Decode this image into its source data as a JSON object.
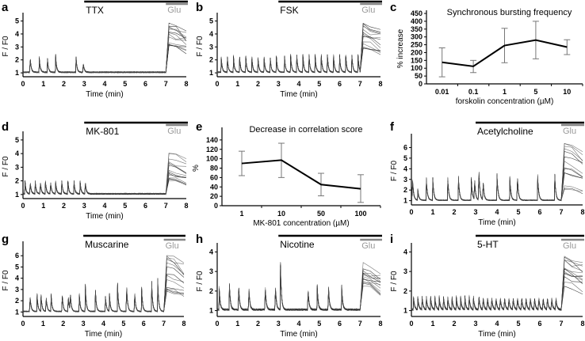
{
  "chart_data": [
    {
      "panel": "a",
      "type": "line",
      "drug": "TTX",
      "glu": "Glu",
      "xlabel": "Time (min)",
      "ylabel": "F / F0",
      "xticks": [
        0,
        1,
        2,
        3,
        4,
        5,
        6,
        7,
        8
      ],
      "yticks": [
        1,
        2,
        3,
        4,
        5
      ],
      "ylim": [
        0.7,
        5.4
      ],
      "drug_on": 3,
      "glu_on": 7,
      "peaks": [
        [
          0.35,
          2.3
        ],
        [
          0.8,
          2.2
        ],
        [
          1.2,
          2.1
        ],
        [
          1.6,
          2.4
        ],
        [
          2.6,
          2.2
        ],
        [
          2.95,
          1.8
        ]
      ],
      "glu_level": [
        3,
        5
      ]
    },
    {
      "panel": "b",
      "type": "line",
      "drug": "FSK",
      "glu": "Glu",
      "xlabel": "Time (min)",
      "ylabel": "F / F0",
      "xticks": [
        0,
        1,
        2,
        3,
        4,
        5,
        6,
        7,
        8
      ],
      "yticks": [
        1,
        2,
        3,
        4,
        5
      ],
      "ylim": [
        0.7,
        5.4
      ],
      "drug_on": 3,
      "glu_on": 7,
      "peaks": [
        [
          0.2,
          2.2
        ],
        [
          0.5,
          2.2
        ],
        [
          0.8,
          2.3
        ],
        [
          1.1,
          2.2
        ],
        [
          1.4,
          2.3
        ],
        [
          1.7,
          2.2
        ],
        [
          2.0,
          2.2
        ],
        [
          2.3,
          2.2
        ],
        [
          2.6,
          2.2
        ],
        [
          2.9,
          2.3
        ],
        [
          3.3,
          2.3
        ],
        [
          3.6,
          2.4
        ],
        [
          3.9,
          2.4
        ],
        [
          4.2,
          2.4
        ],
        [
          4.5,
          2.4
        ],
        [
          4.8,
          2.4
        ],
        [
          5.1,
          2.4
        ],
        [
          5.4,
          2.4
        ],
        [
          5.7,
          2.4
        ],
        [
          6.0,
          2.4
        ],
        [
          6.3,
          2.4
        ],
        [
          6.6,
          2.4
        ],
        [
          6.9,
          2.4
        ]
      ],
      "glu_level": [
        2.5,
        5
      ]
    },
    {
      "panel": "c",
      "type": "line",
      "title": "Synchronous bursting frequency",
      "xlabel": "forskolin concentration (µM)",
      "ylabel": "% increase",
      "categories": [
        "0.01",
        "0.1",
        "1",
        "5",
        "10"
      ],
      "values": [
        138,
        112,
        245,
        280,
        235
      ],
      "err_low": [
        45,
        72,
        135,
        160,
        187
      ],
      "err_high": [
        230,
        150,
        355,
        400,
        282
      ],
      "yticks": [
        0,
        50,
        100,
        150,
        200,
        250,
        300,
        350,
        400,
        450
      ],
      "ylim": [
        0,
        450
      ]
    },
    {
      "panel": "d",
      "type": "line",
      "drug": "MK-801",
      "glu": "Glu",
      "xlabel": "Time (min)",
      "ylabel": "F / F0",
      "xticks": [
        0,
        1,
        2,
        3,
        4,
        5,
        6,
        7,
        8
      ],
      "yticks": [
        1,
        2,
        3,
        4,
        5
      ],
      "ylim": [
        0.7,
        5.4
      ],
      "drug_on": 3,
      "glu_on": 7,
      "peaks": [
        [
          0.1,
          2.0
        ],
        [
          0.35,
          2.0
        ],
        [
          0.6,
          2.0
        ],
        [
          0.85,
          2.0
        ],
        [
          1.1,
          2.0
        ],
        [
          1.35,
          2.0
        ],
        [
          1.6,
          2.0
        ],
        [
          1.9,
          2.0
        ],
        [
          2.2,
          2.0
        ],
        [
          2.5,
          2.0
        ],
        [
          2.8,
          2.0
        ],
        [
          3.05,
          2.0
        ]
      ],
      "glu_level": [
        2,
        4.6
      ]
    },
    {
      "panel": "e",
      "type": "line",
      "title": "Decrease in correlation score",
      "xlabel": "MK-801 concentration (µM)",
      "ylabel": "%",
      "categories": [
        "1",
        "10",
        "50",
        "100"
      ],
      "values": [
        90,
        97,
        45,
        36
      ],
      "err_low": [
        64,
        60,
        21,
        7
      ],
      "err_high": [
        116,
        133,
        69,
        66
      ],
      "yticks": [
        0,
        20,
        40,
        60,
        80,
        100,
        120,
        140
      ],
      "ylim": [
        0,
        160
      ]
    },
    {
      "panel": "f",
      "type": "line",
      "drug": "Acetylcholine",
      "glu": "Glu",
      "xlabel": "Time (min)",
      "ylabel": "F / F0",
      "xticks": [
        0,
        1,
        2,
        3,
        4,
        5,
        6,
        7,
        8
      ],
      "yticks": [
        1,
        2,
        3,
        4,
        5,
        6
      ],
      "ylim": [
        0.6,
        7
      ],
      "drug_on": 3,
      "glu_on": 7,
      "peaks": [
        [
          0.05,
          3.4
        ],
        [
          0.3,
          2.1
        ],
        [
          0.7,
          3.2
        ],
        [
          1.0,
          3.3
        ],
        [
          1.7,
          3.2
        ],
        [
          2.2,
          3.3
        ],
        [
          2.8,
          3.2
        ],
        [
          2.95,
          3.2
        ],
        [
          3.15,
          4.3
        ],
        [
          3.35,
          3.0
        ],
        [
          4.0,
          3.7
        ],
        [
          4.6,
          3.3
        ],
        [
          4.95,
          3.5
        ],
        [
          5.9,
          3.5
        ],
        [
          6.7,
          3.5
        ]
      ],
      "glu_level": [
        2,
        6.5
      ]
    },
    {
      "panel": "g",
      "type": "line",
      "drug": "Muscarine",
      "glu": "Glu",
      "xlabel": "Time (min)",
      "ylabel": "F / F0",
      "xticks": [
        0,
        1,
        2,
        3,
        4,
        5,
        6,
        7,
        8
      ],
      "yticks": [
        1,
        2,
        3,
        4,
        5,
        6
      ],
      "ylim": [
        0.6,
        7
      ],
      "drug_on": 3,
      "glu_on": 7,
      "peaks": [
        [
          0.35,
          2.6
        ],
        [
          0.7,
          2.6
        ],
        [
          0.9,
          2.5
        ],
        [
          1.15,
          2.5
        ],
        [
          1.4,
          2.6
        ],
        [
          1.95,
          2.7
        ],
        [
          2.25,
          2.6
        ],
        [
          2.35,
          2.7
        ],
        [
          2.8,
          2.6
        ],
        [
          3.1,
          3.5
        ],
        [
          3.6,
          3.0
        ],
        [
          4.1,
          2.5
        ],
        [
          4.3,
          2.6
        ],
        [
          4.7,
          3.6
        ],
        [
          5.15,
          3.7
        ],
        [
          5.55,
          3.0
        ],
        [
          5.9,
          3.2
        ],
        [
          6.4,
          3.7
        ],
        [
          6.7,
          4.0
        ]
      ],
      "glu_level": [
        2.7,
        6.3
      ]
    },
    {
      "panel": "h",
      "type": "line",
      "drug": "Nicotine",
      "glu": "Glu",
      "xlabel": "Time (min)",
      "ylabel": "F / F0",
      "xticks": [
        0,
        1,
        2,
        3,
        4,
        5,
        6,
        7,
        8
      ],
      "yticks": [
        1,
        2,
        3,
        4
      ],
      "ylim": [
        0.7,
        4.3
      ],
      "drug_on": 3,
      "glu_on": 7,
      "peaks": [
        [
          0.1,
          2.2
        ],
        [
          0.6,
          2.4
        ],
        [
          1.05,
          2.4
        ],
        [
          1.55,
          2.3
        ],
        [
          2.35,
          2.4
        ],
        [
          2.85,
          2.4
        ],
        [
          3.1,
          3.5
        ],
        [
          4.45,
          2.2
        ],
        [
          4.9,
          2.3
        ],
        [
          5.45,
          2.4
        ],
        [
          6.1,
          2.3
        ]
      ],
      "glu_level": [
        2,
        3.6
      ]
    },
    {
      "panel": "i",
      "type": "line",
      "drug": "5-HT",
      "glu": "Glu",
      "xlabel": "Time (min)",
      "ylabel": "F / F0",
      "xticks": [
        0,
        1,
        2,
        3,
        4,
        5,
        6,
        7,
        8
      ],
      "yticks": [
        1,
        2,
        3,
        4
      ],
      "ylim": [
        0.7,
        4.3
      ],
      "drug_on": 3,
      "glu_on": 7,
      "peaks": [
        [
          0.1,
          1.7
        ],
        [
          0.3,
          1.7
        ],
        [
          0.5,
          1.7
        ],
        [
          0.7,
          1.7
        ],
        [
          0.9,
          1.7
        ],
        [
          1.1,
          1.7
        ],
        [
          1.3,
          1.7
        ],
        [
          1.5,
          1.7
        ],
        [
          1.7,
          1.7
        ],
        [
          1.9,
          1.7
        ],
        [
          2.1,
          1.7
        ],
        [
          2.3,
          1.7
        ],
        [
          2.5,
          1.7
        ],
        [
          2.7,
          1.7
        ],
        [
          2.9,
          1.7
        ],
        [
          3.15,
          1.8
        ],
        [
          3.35,
          1.7
        ],
        [
          3.55,
          1.7
        ],
        [
          3.75,
          1.7
        ],
        [
          3.95,
          1.7
        ],
        [
          4.15,
          1.7
        ],
        [
          4.35,
          1.7
        ],
        [
          4.55,
          1.7
        ],
        [
          4.75,
          1.7
        ],
        [
          4.95,
          1.7
        ],
        [
          5.15,
          1.7
        ],
        [
          5.35,
          1.7
        ],
        [
          5.55,
          1.7
        ],
        [
          5.75,
          1.7
        ],
        [
          5.95,
          1.7
        ],
        [
          6.15,
          1.7
        ],
        [
          6.35,
          1.7
        ],
        [
          6.55,
          1.7
        ],
        [
          6.75,
          1.7
        ]
      ],
      "glu_level": [
        2.2,
        3.8
      ]
    }
  ]
}
